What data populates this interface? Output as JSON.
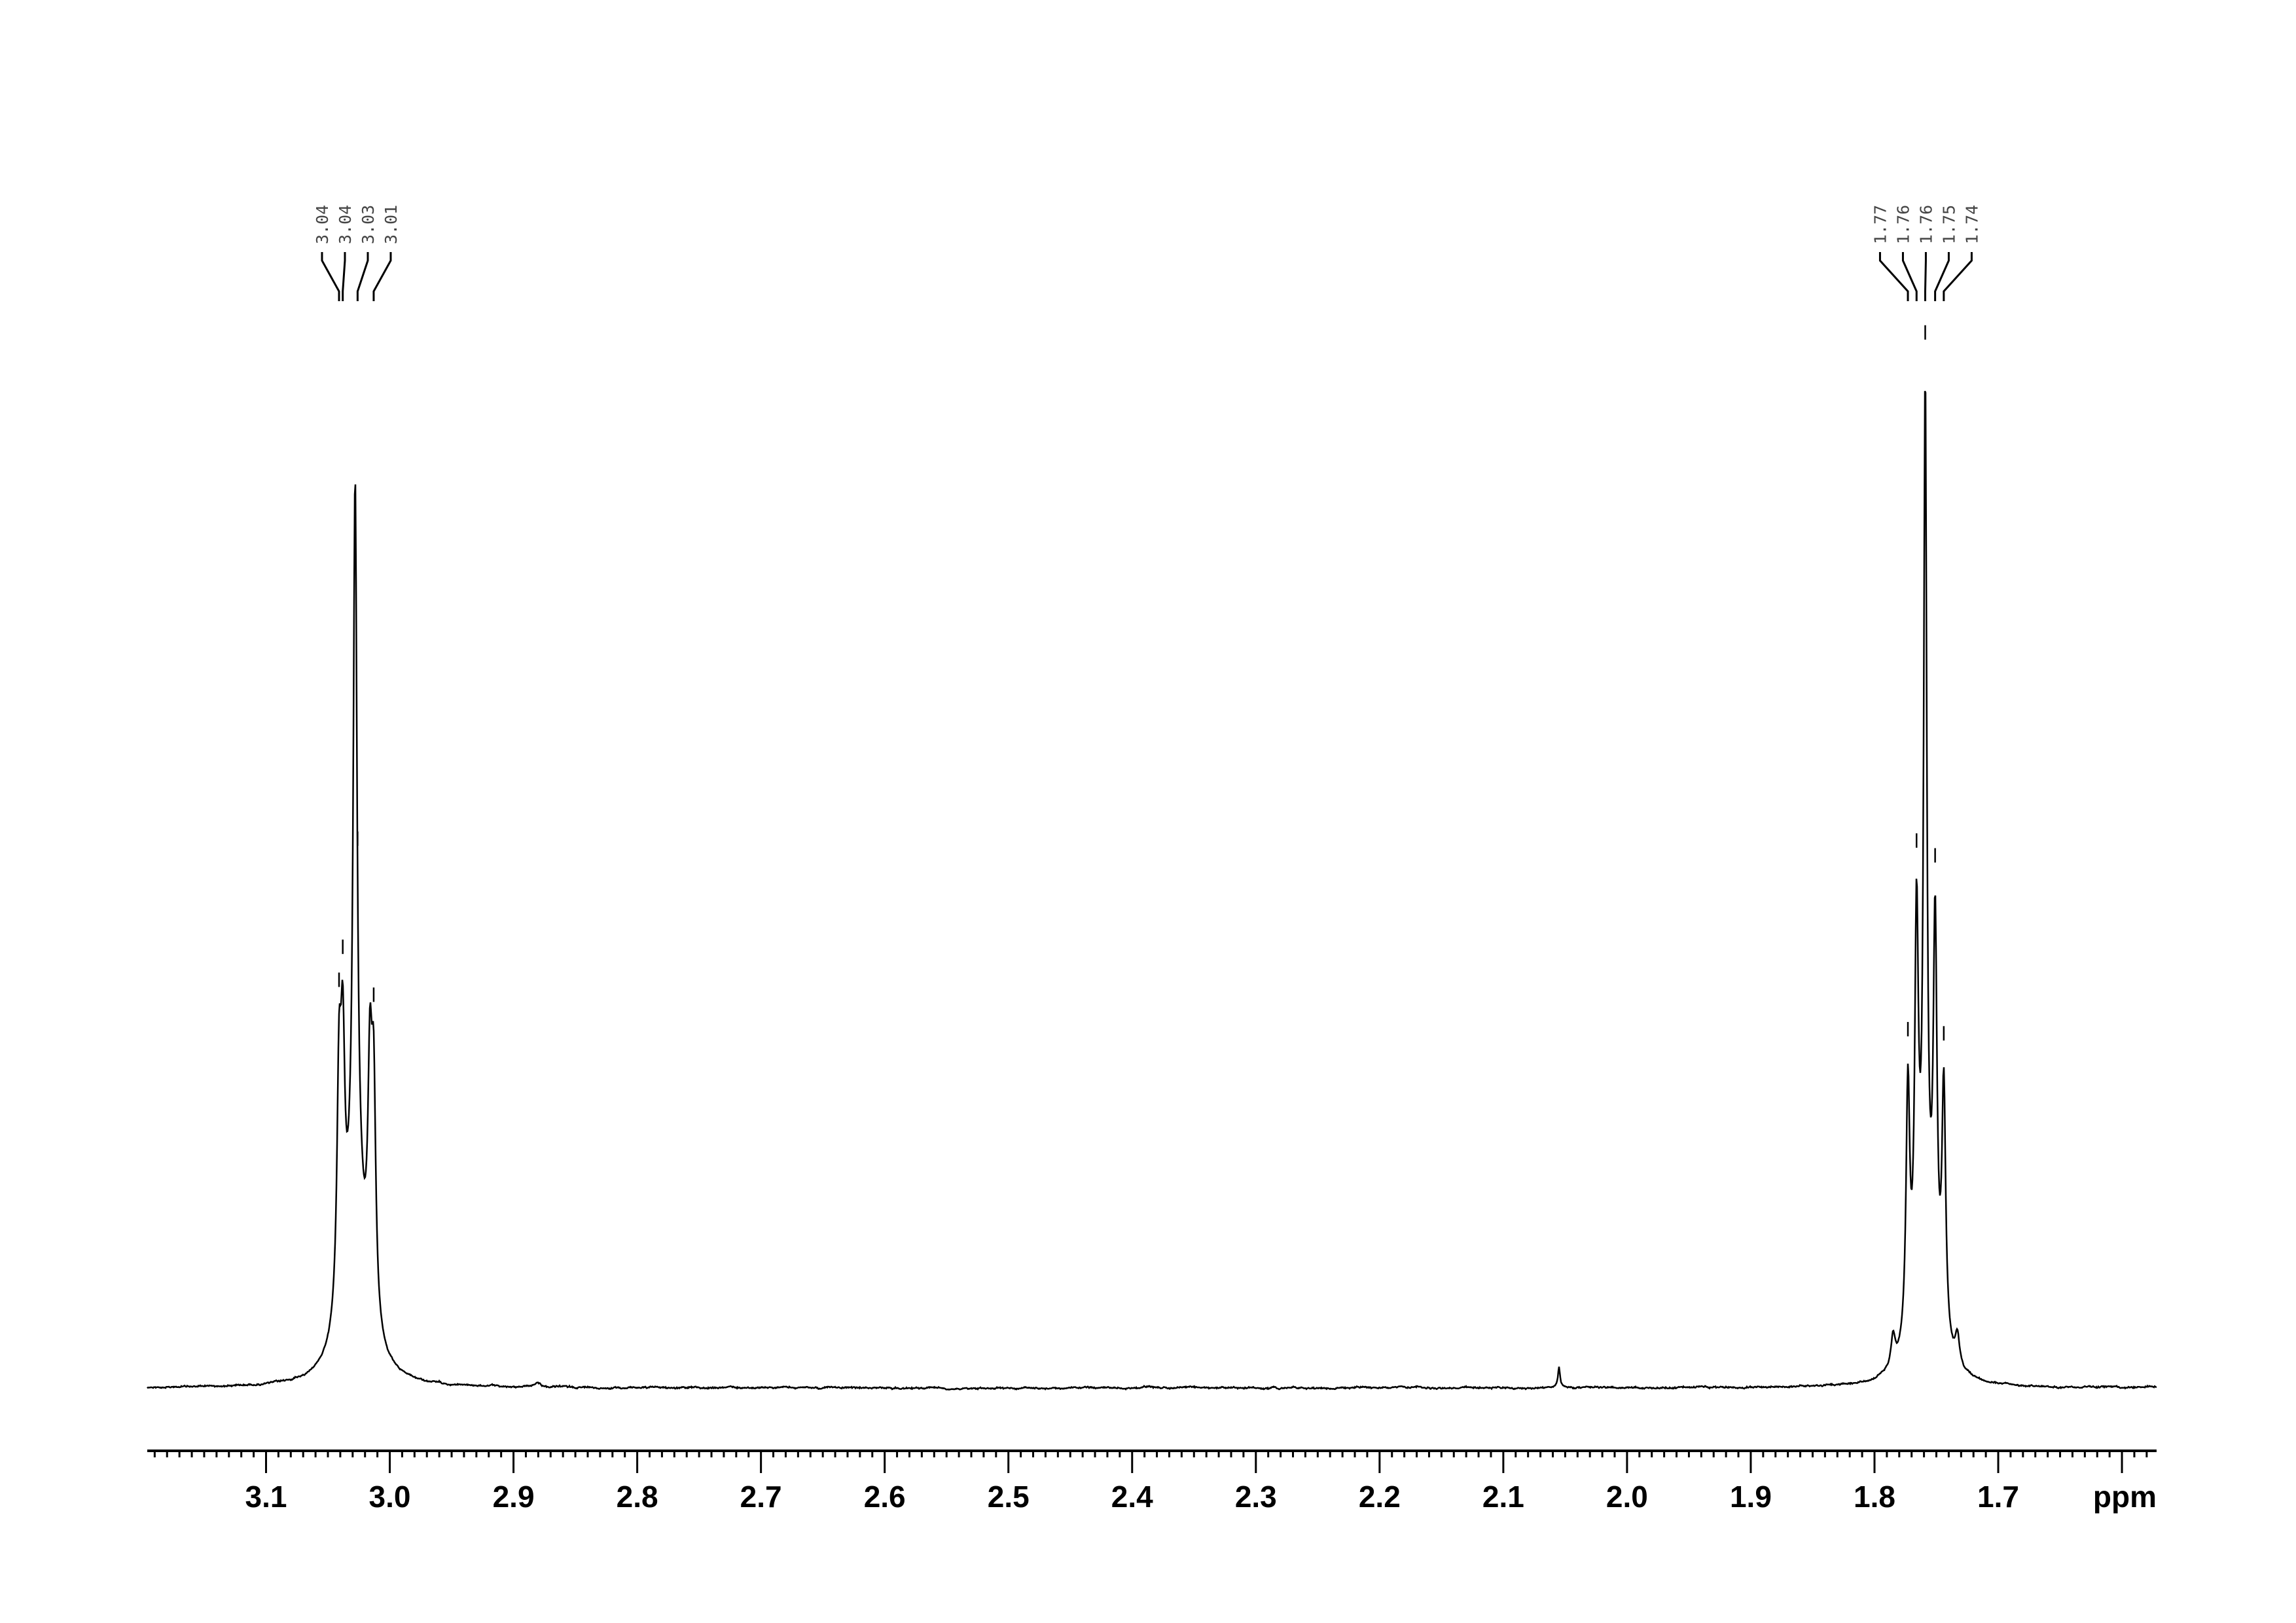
{
  "chart_data": {
    "type": "line",
    "title": "",
    "xlabel": "ppm",
    "ylabel": "",
    "x_reversed": true,
    "xlim": [
      3.196,
      1.572
    ],
    "grid": false,
    "legend": "none",
    "line_color": "#000000",
    "label_color": "#444444",
    "ticks": [
      "3.1",
      "3.0",
      "2.9",
      "2.8",
      "2.7",
      "2.6",
      "2.5",
      "2.4",
      "2.3",
      "2.2",
      "2.1",
      "2.0",
      "1.9",
      "1.8",
      "1.7"
    ],
    "peaks": [
      {
        "ppm": 3.041,
        "intensity": 0.22,
        "width": 0.002
      },
      {
        "ppm": 3.038,
        "intensity": 0.22,
        "width": 0.002
      },
      {
        "ppm": 3.028,
        "intensity": 0.7,
        "width": 0.0018
      },
      {
        "ppm": 3.016,
        "intensity": 0.22,
        "width": 0.002
      },
      {
        "ppm": 3.013,
        "intensity": 0.22,
        "width": 0.002
      },
      {
        "ppm": 3.028,
        "intensity": 0.18,
        "width": 0.01
      },
      {
        "ppm": 2.88,
        "intensity": 0.004,
        "width": 0.003
      },
      {
        "ppm": 2.055,
        "intensity": 0.02,
        "width": 0.001
      },
      {
        "ppm": 1.785,
        "intensity": 0.03,
        "width": 0.002
      },
      {
        "ppm": 1.773,
        "intensity": 0.25,
        "width": 0.0018
      },
      {
        "ppm": 1.766,
        "intensity": 0.38,
        "width": 0.0018
      },
      {
        "ppm": 1.759,
        "intensity": 0.86,
        "width": 0.0015
      },
      {
        "ppm": 1.751,
        "intensity": 0.38,
        "width": 0.0018
      },
      {
        "ppm": 1.744,
        "intensity": 0.25,
        "width": 0.0018
      },
      {
        "ppm": 1.759,
        "intensity": 0.1,
        "width": 0.01
      },
      {
        "ppm": 1.733,
        "intensity": 0.03,
        "width": 0.002
      }
    ],
    "peak_labels": [
      {
        "groups": [
          {
            "text": "3.04",
            "ppm": 3.041
          },
          {
            "text": "3.04",
            "ppm": 3.038
          },
          {
            "text": "3.03",
            "ppm": 3.026
          },
          {
            "text": "3.01",
            "ppm": 3.013
          }
        ]
      },
      {
        "groups": [
          {
            "text": "1.77",
            "ppm": 1.773
          },
          {
            "text": "1.76",
            "ppm": 1.766
          },
          {
            "text": "1.76",
            "ppm": 1.759
          },
          {
            "text": "1.75",
            "ppm": 1.751
          },
          {
            "text": "1.74",
            "ppm": 1.744
          }
        ]
      }
    ]
  }
}
